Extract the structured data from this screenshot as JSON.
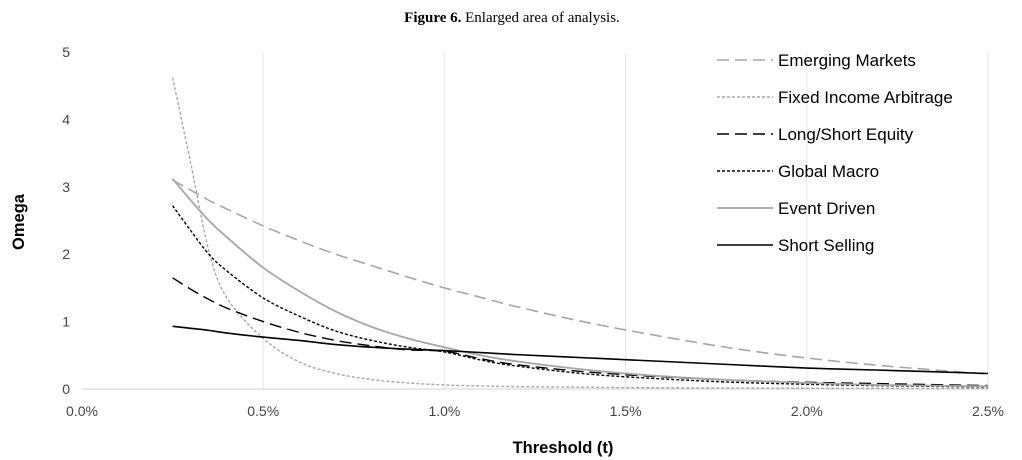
{
  "figure": {
    "caption_label": "Figure 6.",
    "caption_text": "Enlarged area of analysis."
  },
  "chart_data": {
    "type": "line",
    "xlabel": "Threshold (t)",
    "ylabel": "Omega",
    "xlim": [
      0,
      0.025
    ],
    "ylim": [
      0,
      5
    ],
    "x_ticks": [
      0,
      0.005,
      0.01,
      0.015,
      0.02,
      0.025
    ],
    "x_tick_labels": [
      "0.0%",
      "0.5%",
      "1.0%",
      "1.5%",
      "2.0%",
      "2.5%"
    ],
    "y_ticks": [
      0,
      1,
      2,
      3,
      4,
      5
    ],
    "y_tick_labels": [
      "0",
      "1",
      "2",
      "3",
      "4",
      "5"
    ],
    "grid": "vertical gridlines",
    "legend_position": "top-right",
    "x": [
      0.0025,
      0.003,
      0.0035,
      0.004,
      0.005,
      0.006,
      0.007,
      0.008,
      0.009,
      0.01,
      0.011,
      0.012,
      0.014,
      0.016,
      0.018,
      0.02,
      0.022,
      0.025
    ],
    "series": [
      {
        "name": "Emerging Markets",
        "color": "#a6a6a6",
        "dash": "12,6",
        "width": 1.6,
        "values": [
          3.1,
          2.95,
          2.8,
          2.67,
          2.42,
          2.2,
          2.0,
          1.83,
          1.66,
          1.5,
          1.36,
          1.22,
          0.98,
          0.78,
          0.6,
          0.46,
          0.35,
          0.22
        ]
      },
      {
        "name": "Fixed Income Arbitrage",
        "color": "#a6a6a6",
        "dash": "3,2",
        "width": 1.4,
        "values": [
          4.62,
          3.35,
          2.05,
          1.35,
          0.75,
          0.4,
          0.23,
          0.14,
          0.09,
          0.06,
          0.045,
          0.035,
          0.025,
          0.018,
          0.014,
          0.011,
          0.009,
          0.007
        ]
      },
      {
        "name": "Long/Short Equity",
        "color": "#000000",
        "dash": "12,6",
        "width": 1.4,
        "values": [
          1.65,
          1.48,
          1.33,
          1.2,
          1.0,
          0.84,
          0.72,
          0.64,
          0.58,
          0.56,
          0.45,
          0.36,
          0.25,
          0.18,
          0.13,
          0.1,
          0.08,
          0.05
        ]
      },
      {
        "name": "Global Macro",
        "color": "#000000",
        "dash": "3,2",
        "width": 1.4,
        "values": [
          2.72,
          2.35,
          2.0,
          1.75,
          1.35,
          1.08,
          0.86,
          0.72,
          0.62,
          0.55,
          0.43,
          0.34,
          0.22,
          0.15,
          0.1,
          0.07,
          0.05,
          0.03
        ]
      },
      {
        "name": "Event Driven",
        "color": "#a6a6a6",
        "dash": "",
        "width": 1.8,
        "values": [
          3.12,
          2.8,
          2.5,
          2.25,
          1.8,
          1.45,
          1.15,
          0.92,
          0.75,
          0.62,
          0.5,
          0.41,
          0.28,
          0.19,
          0.13,
          0.09,
          0.06,
          0.04
        ]
      },
      {
        "name": "Short Selling",
        "color": "#000000",
        "dash": "",
        "width": 1.6,
        "values": [
          0.93,
          0.9,
          0.87,
          0.83,
          0.77,
          0.72,
          0.66,
          0.62,
          0.59,
          0.57,
          0.54,
          0.51,
          0.46,
          0.41,
          0.36,
          0.31,
          0.28,
          0.23
        ]
      }
    ]
  }
}
